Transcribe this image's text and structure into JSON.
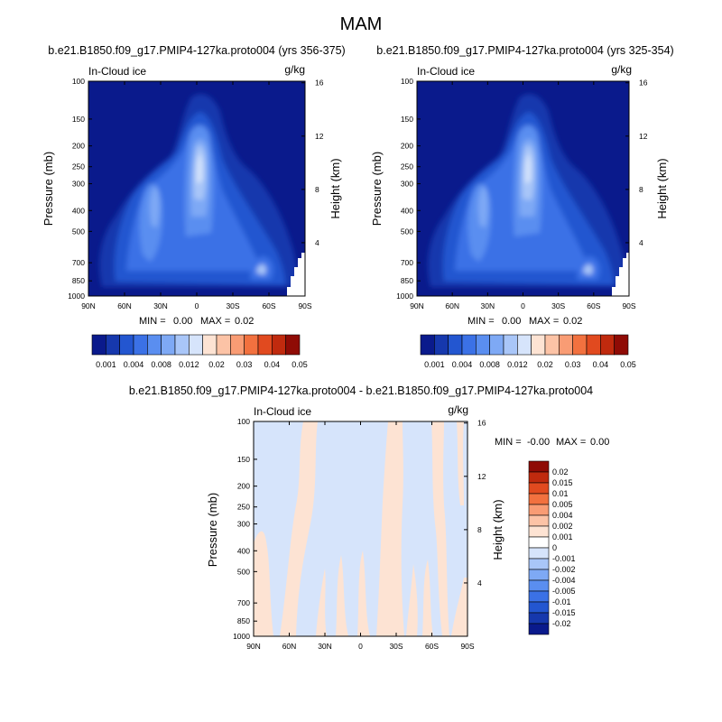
{
  "page_title": "MAM",
  "chart_data": [
    {
      "type": "heatmap",
      "title": "b.e21.B1850.f09_g17.PMIP4-127ka.proto004 (yrs 356-375)",
      "field_label": "In-Cloud ice",
      "units": "g/kg",
      "ylabel": "Pressure (mb)",
      "ylabel_right": "Height (km)",
      "x_ticks": [
        "90N",
        "60N",
        "30N",
        "0",
        "30S",
        "60S",
        "90S"
      ],
      "y_ticks": [
        "100",
        "150",
        "200",
        "250",
        "300",
        "400",
        "500",
        "700",
        "850",
        "1000"
      ],
      "height_ticks": [
        "16",
        "12",
        "8",
        "4"
      ],
      "ylim": [
        1000,
        100
      ],
      "min_label": "MIN =",
      "min_value": "0.00",
      "max_label": "MAX =",
      "max_value": "0.02",
      "colorbar": {
        "orientation": "horizontal",
        "labels": [
          "0.001",
          "0.004",
          "0.008",
          "0.012",
          "0.02",
          "0.03",
          "0.04",
          "0.05"
        ],
        "colors": [
          "#0a1a8c",
          "#1638ad",
          "#2356d0",
          "#3b71e6",
          "#5a8ef0",
          "#7ea9f5",
          "#a9c6f8",
          "#d6e4fb",
          "#fde3d3",
          "#fcc3a6",
          "#f99c74",
          "#f2713f",
          "#e14a1f",
          "#c02a0e",
          "#8f0b05"
        ]
      }
    },
    {
      "type": "heatmap",
      "title": "b.e21.B1850.f09_g17.PMIP4-127ka.proto004 (yrs 325-354)",
      "field_label": "In-Cloud ice",
      "units": "g/kg",
      "ylabel": "Pressure (mb)",
      "ylabel_right": "Height (km)",
      "x_ticks": [
        "90N",
        "60N",
        "30N",
        "0",
        "30S",
        "60S",
        "90S"
      ],
      "y_ticks": [
        "100",
        "150",
        "200",
        "250",
        "300",
        "400",
        "500",
        "700",
        "850",
        "1000"
      ],
      "height_ticks": [
        "16",
        "12",
        "8",
        "4"
      ],
      "ylim": [
        1000,
        100
      ],
      "min_label": "MIN =",
      "min_value": "0.00",
      "max_label": "MAX =",
      "max_value": "0.02",
      "colorbar": {
        "orientation": "horizontal",
        "labels": [
          "0.001",
          "0.004",
          "0.008",
          "0.012",
          "0.02",
          "0.03",
          "0.04",
          "0.05"
        ],
        "colors": [
          "#0a1a8c",
          "#1638ad",
          "#2356d0",
          "#3b71e6",
          "#5a8ef0",
          "#7ea9f5",
          "#a9c6f8",
          "#d6e4fb",
          "#fde3d3",
          "#fcc3a6",
          "#f99c74",
          "#f2713f",
          "#e14a1f",
          "#c02a0e",
          "#8f0b05"
        ]
      }
    },
    {
      "type": "heatmap",
      "title": "b.e21.B1850.f09_g17.PMIP4-127ka.proto004 - b.e21.B1850.f09_g17.PMIP4-127ka.proto004",
      "field_label": "In-Cloud ice",
      "units": "g/kg",
      "ylabel": "Pressure (mb)",
      "ylabel_right": "Height (km)",
      "x_ticks": [
        "90N",
        "60N",
        "30N",
        "0",
        "30S",
        "60S",
        "90S"
      ],
      "y_ticks": [
        "100",
        "150",
        "200",
        "250",
        "300",
        "400",
        "500",
        "700",
        "850",
        "1000"
      ],
      "height_ticks": [
        "16",
        "12",
        "8",
        "4"
      ],
      "ylim": [
        1000,
        100
      ],
      "min_label": "MIN =",
      "min_value": "-0.00",
      "max_label": "MAX =",
      "max_value": "0.00",
      "colorbar": {
        "orientation": "vertical",
        "labels": [
          "0.02",
          "0.015",
          "0.01",
          "0.005",
          "0.004",
          "0.002",
          "0.001",
          "0",
          "-0.001",
          "-0.002",
          "-0.004",
          "-0.005",
          "-0.01",
          "-0.015",
          "-0.02"
        ],
        "colors": [
          "#8f0b05",
          "#c02a0e",
          "#e14a1f",
          "#f2713f",
          "#f99c74",
          "#fcc3a6",
          "#fde3d3",
          "#ffffff",
          "#d6e4fb",
          "#a9c6f8",
          "#7ea9f5",
          "#5a8ef0",
          "#3b71e6",
          "#2356d0",
          "#1638ad",
          "#0a1a8c"
        ]
      }
    }
  ]
}
